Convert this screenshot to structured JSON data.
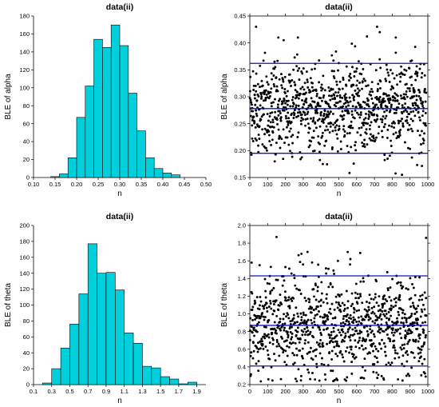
{
  "chart_data": [
    {
      "type": "bar",
      "title": "data(ii)",
      "xlabel": "n",
      "ylabel": "BLE of alpha",
      "xlim": [
        0.1,
        0.5
      ],
      "ylim": [
        0,
        180
      ],
      "xticks": [
        "0.10",
        "0.15",
        "0.20",
        "0.25",
        "0.30",
        "0.35",
        "0.40",
        "0.45",
        "0.50"
      ],
      "yticks": [
        "0",
        "20",
        "40",
        "60",
        "80",
        "100",
        "120",
        "140",
        "160",
        "180"
      ],
      "bin_width": 0.02,
      "bins": [
        {
          "x0": 0.14,
          "count": 1
        },
        {
          "x0": 0.16,
          "count": 4
        },
        {
          "x0": 0.18,
          "count": 22
        },
        {
          "x0": 0.2,
          "count": 67
        },
        {
          "x0": 0.22,
          "count": 102
        },
        {
          "x0": 0.24,
          "count": 154
        },
        {
          "x0": 0.26,
          "count": 145
        },
        {
          "x0": 0.28,
          "count": 170
        },
        {
          "x0": 0.3,
          "count": 147
        },
        {
          "x0": 0.32,
          "count": 94
        },
        {
          "x0": 0.34,
          "count": 52
        },
        {
          "x0": 0.36,
          "count": 22
        },
        {
          "x0": 0.38,
          "count": 10
        },
        {
          "x0": 0.4,
          "count": 5
        },
        {
          "x0": 0.42,
          "count": 3
        }
      ]
    },
    {
      "type": "scatter",
      "title": "data(ii)",
      "xlabel": "n",
      "ylabel": "BLE of alpha",
      "xlim": [
        0,
        1000
      ],
      "ylim": [
        0.15,
        0.45
      ],
      "xticks": [
        "0",
        "100",
        "200",
        "300",
        "400",
        "500",
        "600",
        "700",
        "800",
        "900",
        "1000"
      ],
      "yticks": [
        "0.15",
        "0.20",
        "0.25",
        "0.30",
        "0.35",
        "0.40",
        "0.45"
      ],
      "n_points": 1000,
      "mean": 0.278,
      "sd": 0.042,
      "hlines": [
        0.195,
        0.278,
        0.362
      ],
      "hline_color": "#1010c0",
      "notable_points": [
        {
          "x": 35,
          "y": 0.43
        },
        {
          "x": 160,
          "y": 0.41
        },
        {
          "x": 190,
          "y": 0.405
        },
        {
          "x": 270,
          "y": 0.41
        },
        {
          "x": 715,
          "y": 0.43
        },
        {
          "x": 730,
          "y": 0.42
        },
        {
          "x": 820,
          "y": 0.41
        },
        {
          "x": 855,
          "y": 0.155
        },
        {
          "x": 410,
          "y": 0.175
        },
        {
          "x": 140,
          "y": 0.18
        }
      ]
    },
    {
      "type": "bar",
      "title": "data(ii)",
      "xlabel": "n",
      "ylabel": "BLE of theta",
      "xlim": [
        0.1,
        2.0
      ],
      "ylim": [
        0,
        200
      ],
      "xticks": [
        "0.1",
        "0.3",
        "0.5",
        "0.7",
        "0.9",
        "1.1",
        "1.3",
        "1.5",
        "1.7",
        "1.9"
      ],
      "yticks": [
        "0",
        "20",
        "40",
        "60",
        "80",
        "100",
        "120",
        "140",
        "160",
        "180",
        "200"
      ],
      "bin_width": 0.1,
      "bins": [
        {
          "x0": 0.2,
          "count": 2
        },
        {
          "x0": 0.3,
          "count": 20
        },
        {
          "x0": 0.4,
          "count": 46
        },
        {
          "x0": 0.5,
          "count": 76
        },
        {
          "x0": 0.6,
          "count": 114
        },
        {
          "x0": 0.7,
          "count": 177
        },
        {
          "x0": 0.8,
          "count": 140
        },
        {
          "x0": 0.9,
          "count": 141
        },
        {
          "x0": 1.0,
          "count": 119
        },
        {
          "x0": 1.1,
          "count": 65
        },
        {
          "x0": 1.2,
          "count": 52
        },
        {
          "x0": 1.3,
          "count": 23
        },
        {
          "x0": 1.4,
          "count": 21
        },
        {
          "x0": 1.5,
          "count": 10
        },
        {
          "x0": 1.6,
          "count": 7
        },
        {
          "x0": 1.7,
          "count": 1
        },
        {
          "x0": 1.8,
          "count": 3
        }
      ]
    },
    {
      "type": "scatter",
      "title": "data(ii)",
      "xlabel": "n",
      "ylabel": "BLE of theta",
      "xlim": [
        0,
        1000
      ],
      "ylim": [
        0.2,
        2.0
      ],
      "xticks": [
        "0",
        "100",
        "200",
        "300",
        "400",
        "500",
        "600",
        "700",
        "800",
        "900",
        "1000"
      ],
      "yticks": [
        "0.2",
        "0.4",
        "0.6",
        "0.8",
        "1.0",
        "1.2",
        "1.4",
        "1.6",
        "1.8",
        "2.0"
      ],
      "n_points": 1000,
      "mean": 0.87,
      "sd": 0.27,
      "hlines": [
        0.41,
        0.87,
        1.43
      ],
      "hline_color": "#1010c0",
      "notable_points": [
        {
          "x": 10,
          "y": 1.58
        },
        {
          "x": 150,
          "y": 1.87
        },
        {
          "x": 200,
          "y": 1.53
        },
        {
          "x": 290,
          "y": 1.68
        },
        {
          "x": 550,
          "y": 1.7
        },
        {
          "x": 565,
          "y": 1.62
        },
        {
          "x": 990,
          "y": 1.86
        },
        {
          "x": 630,
          "y": 0.28
        },
        {
          "x": 880,
          "y": 0.3
        }
      ]
    }
  ]
}
